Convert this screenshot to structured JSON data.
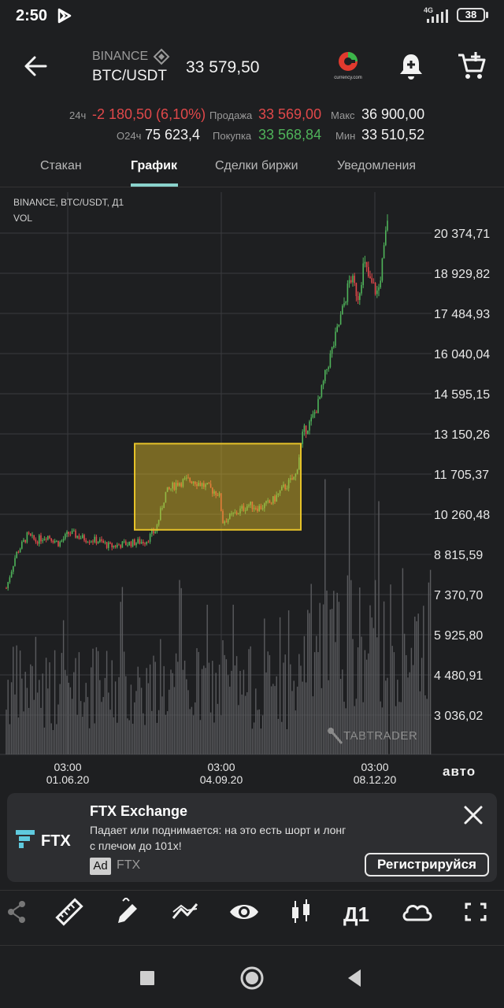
{
  "status_bar": {
    "time": "2:50",
    "network": "4G",
    "battery": "38"
  },
  "header": {
    "exchange": "BINANCE",
    "pair": "BTC/USDT",
    "price": "33 579,50",
    "currency_logo_text": "currency.com"
  },
  "stats": {
    "change_label": "24ч",
    "change_value": "-2 180,50 (6,10%)",
    "volume_label": "О24ч",
    "volume_value": "75 623,4",
    "sell_label": "Продажа",
    "sell_value": "33 569,00",
    "buy_label": "Покупка",
    "buy_value": "33 568,84",
    "max_label": "Макс",
    "max_value": "36 900,00",
    "min_label": "Мин",
    "min_value": "33 510,52"
  },
  "tabs": [
    {
      "label": "Стакан"
    },
    {
      "label": "График",
      "active": true
    },
    {
      "label": "Сделки биржи"
    },
    {
      "label": "Уведомления"
    }
  ],
  "chart_data": {
    "type": "candlestick",
    "title": "BINANCE, BTC/USDT, Д1",
    "volume_label": "VOL",
    "y_ticks": [
      "20 374,71",
      "18 929,82",
      "17 484,93",
      "16 040,04",
      "14 595,15",
      "13 150,26",
      "11 705,37",
      "10 260,48",
      "8 815,59",
      "7 370,70",
      "5 925,80",
      "4 480,91",
      "3 036,02"
    ],
    "y_tick_values": [
      20374.71,
      18929.82,
      17484.93,
      16040.04,
      14595.15,
      13150.26,
      11705.37,
      10260.48,
      8815.59,
      7370.7,
      5925.8,
      4480.91,
      3036.02
    ],
    "x_ticks": [
      {
        "time": "03:00",
        "date": "01.06.20"
      },
      {
        "time": "03:00",
        "date": "04.09.20"
      },
      {
        "time": "03:00",
        "date": "08.12.20"
      }
    ],
    "highlight_range": {
      "y_from": 9700,
      "y_to": 12800
    },
    "grid": true,
    "watermark": "TABTRADER",
    "auto_label": "авто",
    "timeframe": "Д1",
    "up_color": "#4fb35a",
    "down_color": "#e0484a",
    "highlight_color": "#e6c229"
  },
  "ad": {
    "title": "FTX Exchange",
    "text": "Падает или поднимается: на это есть шорт и лонг с плечом до 101x!",
    "badge": "Ad",
    "source": "FTX",
    "button": "Регистрируйся",
    "logo_text": "FTX"
  },
  "toolbar": {
    "icons": [
      "share-icon",
      "ruler-icon",
      "pencil-icon",
      "indicators-icon",
      "eye-icon",
      "candles-icon",
      "timeframe",
      "cloud-icon",
      "fullscreen-icon"
    ]
  }
}
